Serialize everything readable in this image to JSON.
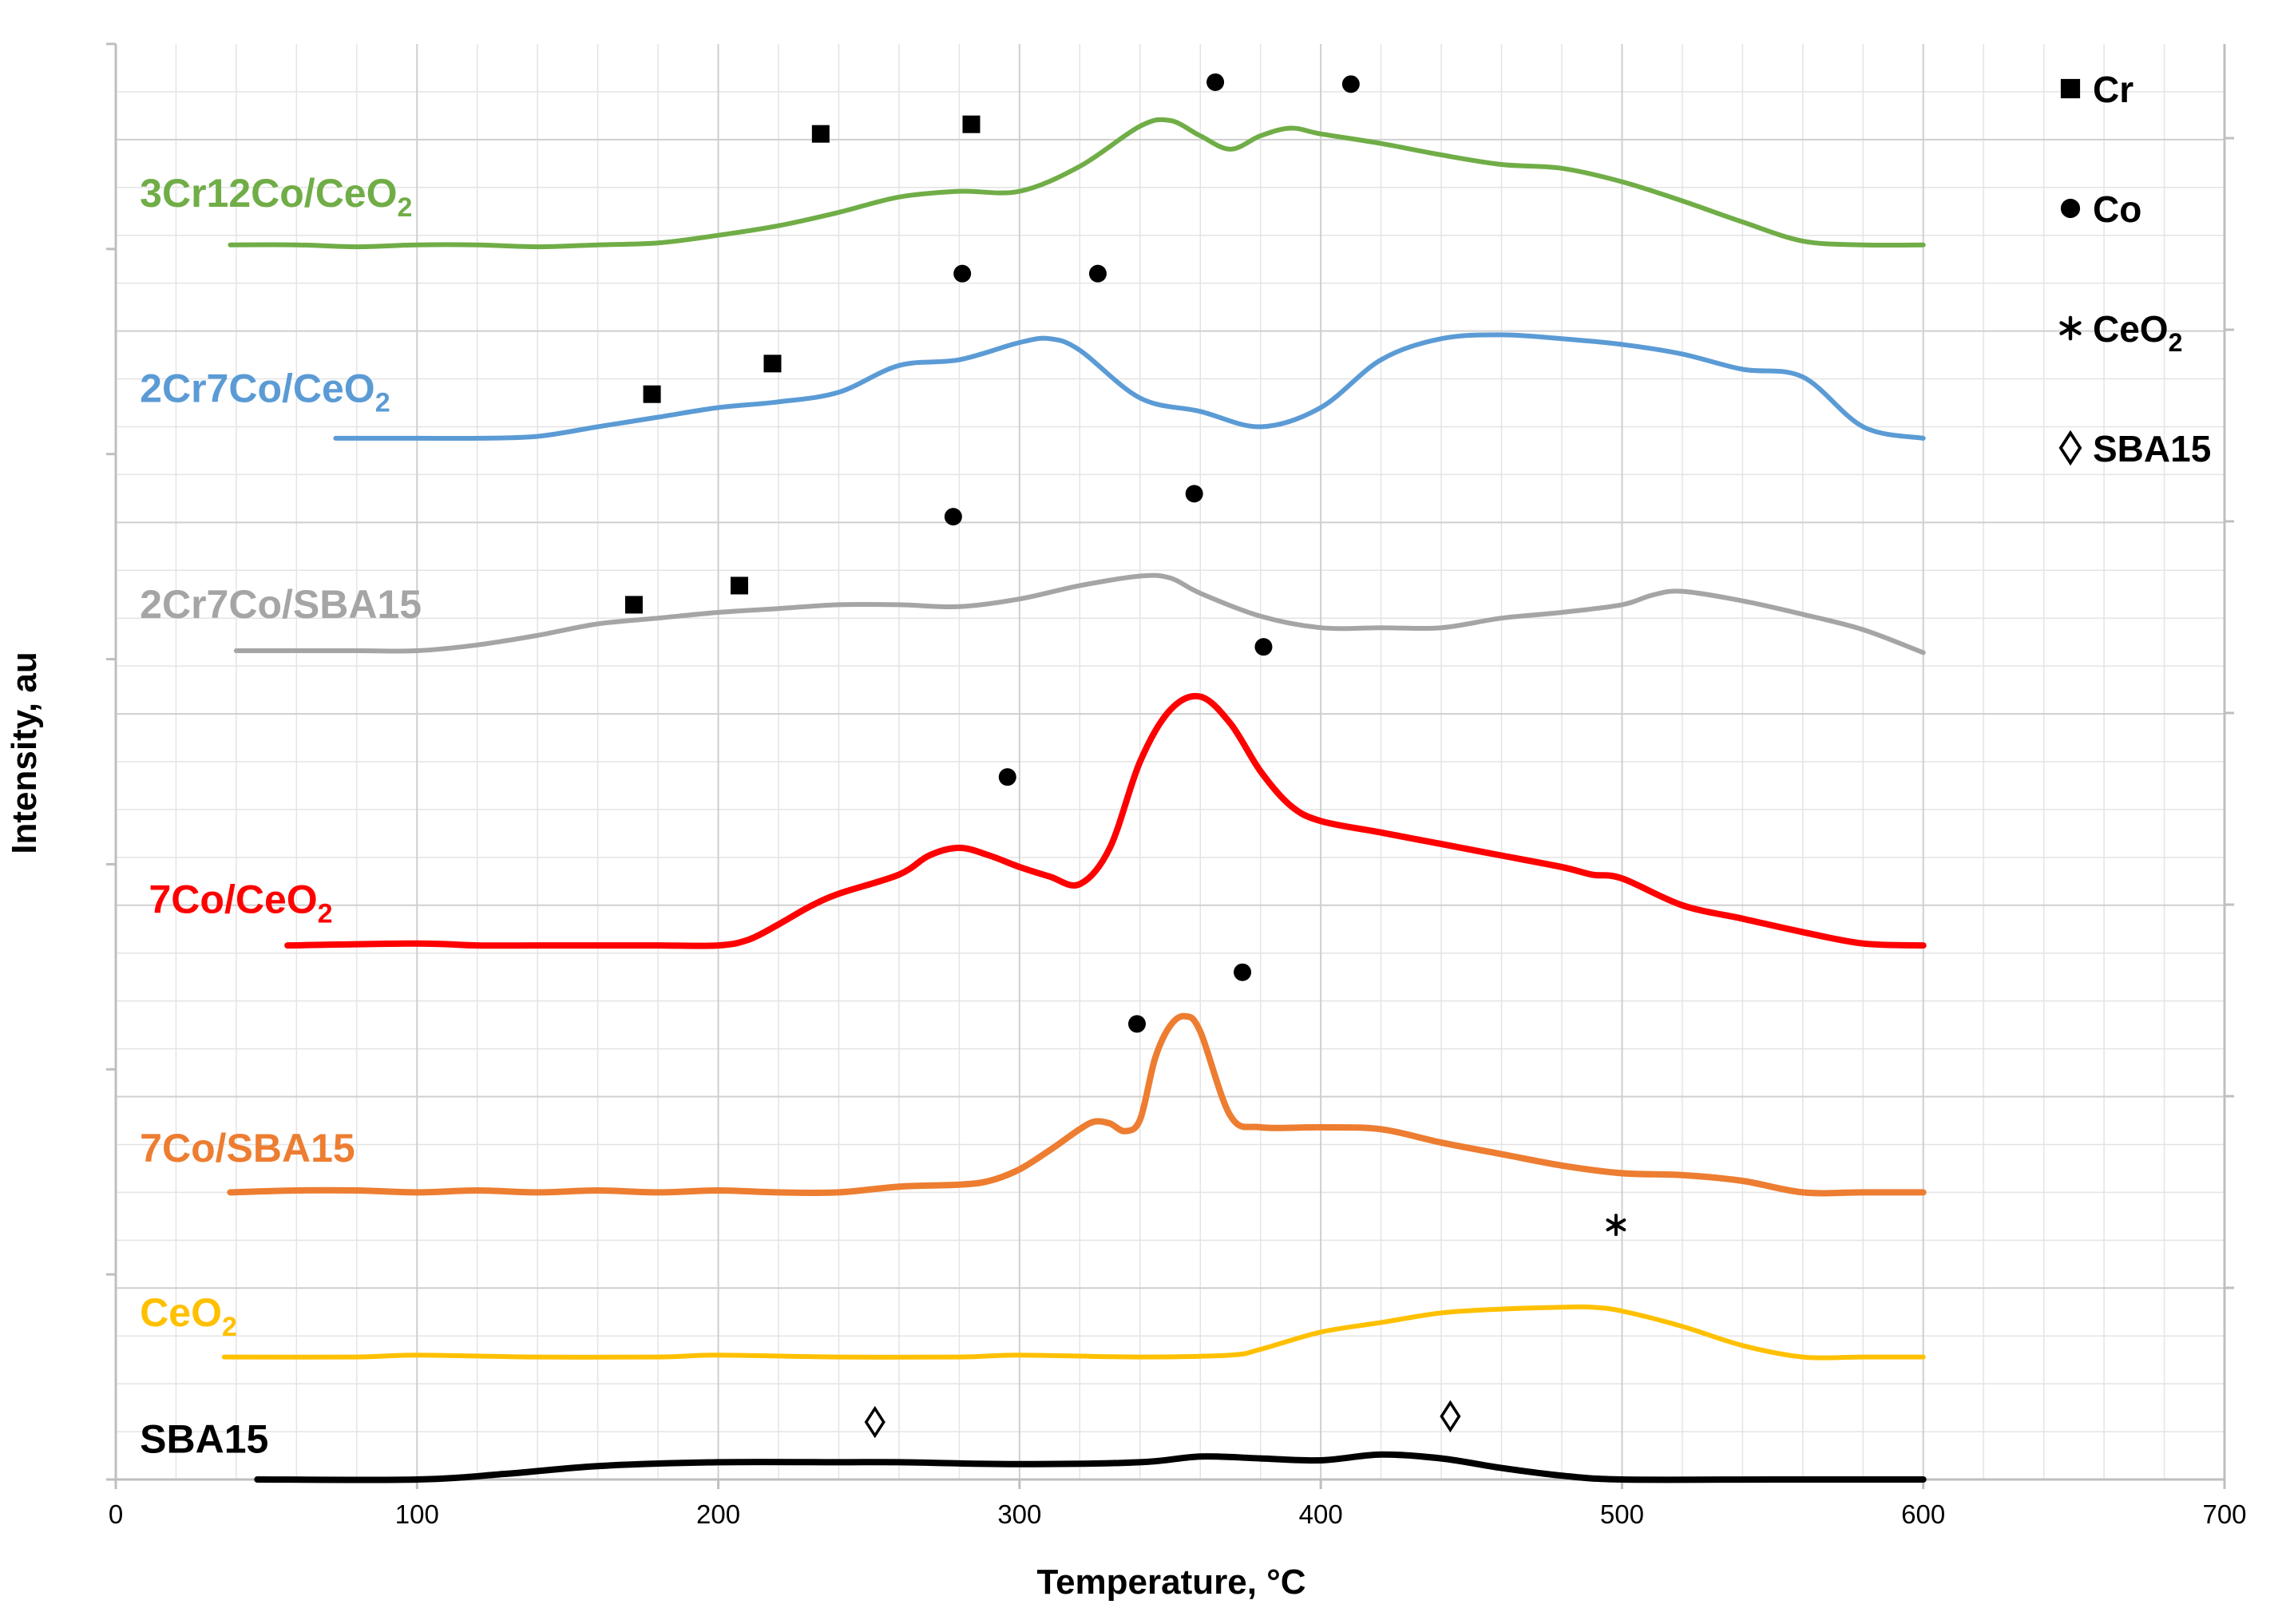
{
  "chart_data": {
    "type": "line",
    "title": "",
    "xlabel": "Temperature, °C",
    "ylabel": "Intensity, au",
    "xlim": [
      0,
      700
    ],
    "ylim": [
      0,
      7.5
    ],
    "x_ticks": [
      "0",
      "100",
      "200",
      "300",
      "400",
      "500",
      "600",
      "700"
    ],
    "grid": true,
    "legend": {
      "placement": "top-right",
      "entries": [
        {
          "name": "Cr",
          "marker": "square"
        },
        {
          "name": "Co",
          "marker": "circle"
        },
        {
          "name": "CeO",
          "sub": "2",
          "marker": "asterisk"
        },
        {
          "name": "SBA15",
          "marker": "diamond"
        }
      ]
    },
    "series": [
      {
        "name": "3Cr12Co/CeO",
        "sub": "2",
        "color": "#70AD47",
        "stroke": 3,
        "x": [
          38,
          60,
          80,
          100,
          120,
          140,
          160,
          180,
          200,
          220,
          240,
          260,
          280,
          300,
          320,
          340,
          350,
          360,
          370,
          380,
          390,
          400,
          420,
          440,
          460,
          480,
          500,
          520,
          540,
          560,
          580,
          600
        ],
        "y": [
          6.45,
          6.45,
          6.44,
          6.45,
          6.45,
          6.44,
          6.45,
          6.46,
          6.5,
          6.55,
          6.62,
          6.7,
          6.73,
          6.73,
          6.86,
          7.07,
          7.1,
          7.02,
          6.95,
          7.02,
          7.06,
          7.03,
          6.98,
          6.92,
          6.87,
          6.85,
          6.78,
          6.68,
          6.57,
          6.47,
          6.45,
          6.45
        ]
      },
      {
        "name": "2Cr7Co/CeO",
        "sub": "2",
        "color": "#5B9BD5",
        "stroke": 3,
        "x": [
          73,
          100,
          120,
          140,
          160,
          180,
          200,
          220,
          240,
          260,
          280,
          300,
          310,
          320,
          340,
          360,
          380,
          400,
          420,
          440,
          460,
          480,
          500,
          520,
          540,
          560,
          580,
          600
        ],
        "y": [
          5.44,
          5.44,
          5.44,
          5.45,
          5.5,
          5.55,
          5.6,
          5.63,
          5.68,
          5.82,
          5.85,
          5.94,
          5.96,
          5.9,
          5.65,
          5.58,
          5.5,
          5.6,
          5.85,
          5.96,
          5.98,
          5.96,
          5.93,
          5.88,
          5.8,
          5.76,
          5.5,
          5.44
        ]
      },
      {
        "name": "2Cr7Co/SBA15",
        "sub": "",
        "color": "#A5A5A5",
        "stroke": 3,
        "x": [
          40,
          80,
          100,
          120,
          140,
          160,
          180,
          200,
          220,
          240,
          260,
          280,
          300,
          320,
          340,
          350,
          360,
          380,
          400,
          420,
          440,
          460,
          480,
          500,
          510,
          520,
          540,
          560,
          580,
          600
        ],
        "y": [
          4.33,
          4.33,
          4.33,
          4.36,
          4.41,
          4.47,
          4.5,
          4.53,
          4.55,
          4.57,
          4.57,
          4.56,
          4.6,
          4.67,
          4.72,
          4.71,
          4.63,
          4.51,
          4.45,
          4.45,
          4.45,
          4.5,
          4.53,
          4.57,
          4.62,
          4.64,
          4.59,
          4.52,
          4.44,
          4.32
        ]
      },
      {
        "name": "7Co/CeO",
        "sub": "2",
        "color": "#FF0000",
        "stroke": 4,
        "x": [
          57,
          100,
          120,
          140,
          160,
          180,
          200,
          210,
          220,
          230,
          240,
          260,
          270,
          280,
          290,
          300,
          310,
          320,
          330,
          340,
          350,
          360,
          370,
          380,
          390,
          400,
          420,
          440,
          460,
          480,
          490,
          500,
          520,
          540,
          560,
          580,
          600
        ],
        "y": [
          2.79,
          2.8,
          2.79,
          2.79,
          2.79,
          2.79,
          2.79,
          2.82,
          2.9,
          2.99,
          3.06,
          3.16,
          3.26,
          3.3,
          3.26,
          3.2,
          3.15,
          3.11,
          3.3,
          3.75,
          4.02,
          4.09,
          3.95,
          3.7,
          3.52,
          3.44,
          3.38,
          3.32,
          3.26,
          3.2,
          3.16,
          3.14,
          3.0,
          2.93,
          2.86,
          2.8,
          2.79
        ]
      },
      {
        "name": "7Co/SBA15",
        "sub": "",
        "color": "#ED7D31",
        "stroke": 4,
        "x": [
          38,
          60,
          80,
          100,
          120,
          140,
          160,
          180,
          200,
          220,
          240,
          260,
          280,
          290,
          300,
          310,
          320,
          325,
          330,
          335,
          340,
          345,
          350,
          355,
          360,
          370,
          380,
          400,
          420,
          440,
          460,
          480,
          500,
          520,
          540,
          560,
          580,
          600
        ],
        "y": [
          1.5,
          1.51,
          1.51,
          1.5,
          1.51,
          1.5,
          1.51,
          1.5,
          1.51,
          1.5,
          1.5,
          1.53,
          1.54,
          1.56,
          1.62,
          1.72,
          1.83,
          1.87,
          1.86,
          1.82,
          1.88,
          2.2,
          2.37,
          2.42,
          2.34,
          1.9,
          1.84,
          1.84,
          1.83,
          1.76,
          1.7,
          1.64,
          1.6,
          1.59,
          1.56,
          1.5,
          1.5,
          1.5
        ]
      },
      {
        "name": "CeO",
        "sub": "2",
        "color": "#FFC000",
        "stroke": 3,
        "x": [
          36,
          80,
          100,
          140,
          180,
          200,
          240,
          280,
          300,
          340,
          370,
          380,
          400,
          420,
          440,
          460,
          480,
          490,
          500,
          520,
          540,
          560,
          580,
          600
        ],
        "y": [
          0.64,
          0.64,
          0.65,
          0.64,
          0.64,
          0.65,
          0.64,
          0.64,
          0.65,
          0.64,
          0.65,
          0.68,
          0.77,
          0.82,
          0.87,
          0.89,
          0.9,
          0.9,
          0.88,
          0.8,
          0.7,
          0.64,
          0.64,
          0.64
        ]
      },
      {
        "name": "SBA15",
        "sub": "",
        "color": "#000000",
        "stroke": 4,
        "x": [
          47,
          100,
          130,
          160,
          200,
          240,
          260,
          300,
          340,
          360,
          380,
          400,
          420,
          440,
          460,
          480,
          500,
          550,
          600
        ],
        "y": [
          0.0,
          0.0,
          0.03,
          0.07,
          0.09,
          0.09,
          0.09,
          0.08,
          0.09,
          0.12,
          0.11,
          0.1,
          0.13,
          0.11,
          0.06,
          0.02,
          0.0,
          0.0,
          0.0
        ]
      }
    ],
    "series_labels": [
      {
        "text": "3Cr12Co/CeO",
        "sub": "2",
        "color": "#70AD47",
        "x": 8,
        "y": 6.65
      },
      {
        "text": "2Cr7Co/CeO",
        "sub": "2",
        "color": "#5B9BD5",
        "x": 8,
        "y": 5.63
      },
      {
        "text": "2Cr7Co/SBA15",
        "sub": "",
        "color": "#A5A5A5",
        "x": 8,
        "y": 4.5
      },
      {
        "text": "7Co/CeO",
        "sub": "2",
        "color": "#FF0000",
        "x": 11,
        "y": 2.96
      },
      {
        "text": "7Co/SBA15",
        "sub": "",
        "color": "#ED7D31",
        "x": 8,
        "y": 1.66
      },
      {
        "text": "CeO",
        "sub": "2",
        "color": "#FFC000",
        "x": 8,
        "y": 0.8
      },
      {
        "text": "SBA15",
        "sub": "",
        "color": "#000000",
        "x": 8,
        "y": 0.14
      }
    ],
    "annotations": [
      {
        "marker": "square",
        "x": 234,
        "y": 7.03
      },
      {
        "marker": "square",
        "x": 284,
        "y": 7.08
      },
      {
        "marker": "circle",
        "x": 365,
        "y": 7.3
      },
      {
        "marker": "circle",
        "x": 410,
        "y": 7.29
      },
      {
        "marker": "circle",
        "x": 281,
        "y": 6.3
      },
      {
        "marker": "circle",
        "x": 326,
        "y": 6.3
      },
      {
        "marker": "square",
        "x": 178,
        "y": 5.67
      },
      {
        "marker": "square",
        "x": 218,
        "y": 5.83
      },
      {
        "marker": "circle",
        "x": 278,
        "y": 5.03
      },
      {
        "marker": "circle",
        "x": 358,
        "y": 5.15
      },
      {
        "marker": "circle",
        "x": 381,
        "y": 4.35
      },
      {
        "marker": "square",
        "x": 172,
        "y": 4.57
      },
      {
        "marker": "square",
        "x": 207,
        "y": 4.67
      },
      {
        "marker": "circle",
        "x": 296,
        "y": 3.67
      },
      {
        "marker": "circle",
        "x": 374,
        "y": 2.65
      },
      {
        "marker": "circle",
        "x": 339,
        "y": 2.38
      },
      {
        "marker": "asterisk",
        "x": 498,
        "y": 1.33
      },
      {
        "marker": "diamond",
        "x": 252,
        "y": 0.3
      },
      {
        "marker": "diamond",
        "x": 443,
        "y": 0.33
      }
    ]
  }
}
